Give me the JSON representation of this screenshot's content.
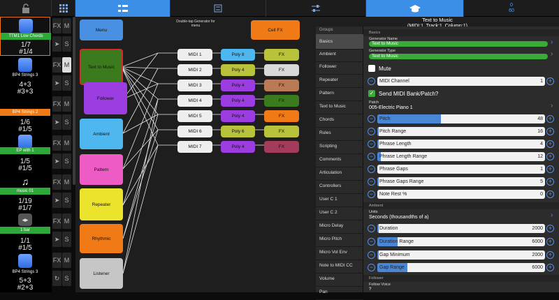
{
  "top_bar": {
    "counter_top": "0",
    "counter_bottom": "60"
  },
  "title": {
    "line1": "Text to Music",
    "line2": "(MIDI:1, Track:1, Column:1)"
  },
  "left_column": [
    {
      "name": "TTM1 Low Chords",
      "v1": "1/7",
      "v2": "#1/4",
      "name_bg": "#2fa83a"
    },
    {
      "name": "BP4 Strings 3",
      "v1": "4+3",
      "v2": "#3+3",
      "name_bg": "#000000"
    },
    {
      "name": "BP4 Strings 2",
      "v1": "1/6",
      "v2": "#1/5",
      "name_bg": "#f07a16"
    },
    {
      "name": "EP with 1",
      "v1": "1/5",
      "v2": "#1/5",
      "name_bg": "#2fa83a"
    },
    {
      "name": "music 01",
      "v1": "1/19",
      "v2": "#1/7",
      "name_bg": "#2fa83a"
    },
    {
      "name": "1 bar",
      "v1": "1/1",
      "v2": "#1/5",
      "name_bg": "#2fa83a"
    },
    {
      "name": "BP4 Strings 3",
      "v1": "5+3",
      "v2": "#2+3",
      "name_bg": "#000000"
    }
  ],
  "fx_labels": {
    "fx": "FX",
    "m": "M",
    "s": "S"
  },
  "canvas": {
    "hint": "Double-tap Generator for menu",
    "generators": [
      {
        "label": "Menu",
        "color": "#4a90e2"
      },
      {
        "label": "Text to Music",
        "color": "#3c7a1e"
      },
      {
        "label": "Follower",
        "color": "#9b3de0"
      },
      {
        "label": "Ambient",
        "color": "#4fb7f0"
      },
      {
        "label": "Pattern",
        "color": "#ef5bc5"
      },
      {
        "label": "Repeater",
        "color": "#ece32d"
      },
      {
        "label": "Rhythmic",
        "color": "#f07a16"
      },
      {
        "label": "Listener",
        "color": "#c6c6c6"
      },
      {
        "label": "Cell FX",
        "color": "#f07a16"
      }
    ],
    "midi": [
      "MIDI 1",
      "MIDI 2",
      "MIDI 3",
      "MIDI 4",
      "MIDI 5",
      "MIDI 6",
      "MIDI 7"
    ],
    "poly": [
      {
        "label": "Poly 8",
        "color": "#4fb7f0"
      },
      {
        "label": "Poly 4",
        "color": "#b8c23a"
      },
      {
        "label": "Poly 4",
        "color": "#9b3de0"
      },
      {
        "label": "Poly 4",
        "color": "#9b3de0"
      },
      {
        "label": "Poly 4",
        "color": "#9b3de0"
      },
      {
        "label": "Poly 6",
        "color": "#b8c23a"
      },
      {
        "label": "Poly 4",
        "color": "#9b3de0"
      }
    ],
    "fx": [
      {
        "label": "FX",
        "color": "#b8c23a"
      },
      {
        "label": "FX",
        "color": "#d9d9d9"
      },
      {
        "label": "FX",
        "color": "#b97a55"
      },
      {
        "label": "FX",
        "color": "#3c7a1e"
      },
      {
        "label": "FX",
        "color": "#f07a16"
      },
      {
        "label": "FX",
        "color": "#b8c23a"
      },
      {
        "label": "FX",
        "color": "#a33c5a"
      }
    ]
  },
  "groups": {
    "header": "Groups",
    "items": [
      "Basics",
      "Ambient",
      "Follower",
      "Repeater",
      "Pattern",
      "Text to Music",
      "Chords",
      "Rules",
      "Scripting",
      "Comments",
      "Articulation",
      "Controllers",
      "User C 1",
      "User C 2",
      "Micro Delay",
      "Micro Pitch",
      "Micro Vol Env",
      "Note to MIDI CC",
      "Volume",
      "Pan"
    ]
  },
  "settings": {
    "basics_header": "Basics",
    "gen_name_label": "Generator Name",
    "gen_name_value": "Text to Music",
    "gen_type_label": "Generator Type",
    "gen_type_value": "Text to Music",
    "mute_label": "Mute",
    "midi_channel": {
      "label": "MIDI Channel",
      "value": "1"
    },
    "send_midi_label": "Send MIDI Bank/Patch?",
    "patch_label": "Patch",
    "patch_value": "005-Electric Piano 1",
    "sliders1": [
      {
        "label": "Pitch",
        "value": "48",
        "fill": 0.38
      },
      {
        "label": "Pitch Range",
        "value": "16",
        "fill": 0.01
      },
      {
        "label": "Phrase Length",
        "value": "4",
        "fill": 0.01
      },
      {
        "label": "Phrase Length Range",
        "value": "12",
        "fill": 0.02
      },
      {
        "label": "Phrase Gaps",
        "value": "1",
        "fill": 0.0
      },
      {
        "label": "Phrase Gaps Range",
        "value": "5",
        "fill": 0.01
      },
      {
        "label": "Note Rest %",
        "value": "0",
        "fill": 0.0
      }
    ],
    "ambient_header": "Ambient",
    "units_label": "Units",
    "units_value": "Seconds (thousandths of a)",
    "sliders2": [
      {
        "label": "Duration",
        "value": "2000",
        "fill": 0.01
      },
      {
        "label": "Duration Range",
        "value": "6000",
        "fill": 0.12
      },
      {
        "label": "Gap Minimum",
        "value": "2000",
        "fill": 0.01
      },
      {
        "label": "Gap Range",
        "value": "6000",
        "fill": 0.18
      }
    ],
    "follower_header": "Follower",
    "follow_voice_label": "Follow Voice",
    "follow_voice_value": "?"
  }
}
